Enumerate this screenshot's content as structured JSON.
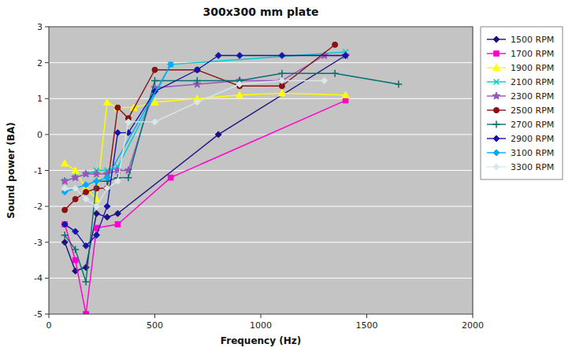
{
  "chart_data": {
    "type": "line",
    "title": "300x300 mm plate",
    "xlabel": "Frequency (Hz)",
    "ylabel": "Sound power (BA)",
    "xlim": [
      0,
      2000
    ],
    "ylim": [
      -5,
      3
    ],
    "xticks": [
      0,
      500,
      1000,
      1500,
      2000
    ],
    "yticks": [
      -5,
      -4,
      -3,
      -2,
      -1,
      0,
      1,
      2,
      3
    ],
    "grid": true,
    "legend": "right",
    "series": [
      {
        "name": "1500 RPM",
        "color": "#1f1080",
        "marker": "diamond",
        "x": [
          75,
          125,
          175,
          225,
          275,
          325,
          800,
          1400
        ],
        "values": [
          -3.0,
          -3.8,
          -3.7,
          -2.2,
          -2.3,
          -2.2,
          0.0,
          2.2
        ]
      },
      {
        "name": "1700 RPM",
        "color": "#ff00cc",
        "marker": "square",
        "x": [
          75,
          125,
          175,
          225,
          325,
          575,
          1400
        ],
        "values": [
          -2.5,
          -3.5,
          -5.0,
          -2.6,
          -2.5,
          -1.2,
          0.95
        ]
      },
      {
        "name": "1900 RPM",
        "color": "#ffff00",
        "marker": "triangle",
        "x": [
          75,
          125,
          175,
          225,
          275,
          325,
          400,
          500,
          700,
          900,
          1100,
          1400
        ],
        "values": [
          -0.8,
          -1.0,
          -1.5,
          -1.8,
          0.9,
          0.75,
          0.75,
          0.9,
          1.0,
          1.1,
          1.15,
          1.1
        ]
      },
      {
        "name": "2100 RPM",
        "color": "#00cccc",
        "marker": "x",
        "x": [
          75,
          125,
          175,
          225,
          275,
          325,
          575,
          1400
        ],
        "values": [
          -1.3,
          -1.2,
          -1.1,
          -1.0,
          -1.0,
          -0.9,
          1.95,
          2.3
        ]
      },
      {
        "name": "2300 RPM",
        "color": "#9955bb",
        "marker": "star",
        "x": [
          75,
          125,
          175,
          225,
          275,
          325,
          375,
          500,
          700,
          900,
          1100,
          1300,
          1400
        ],
        "values": [
          -1.3,
          -1.2,
          -1.1,
          -1.1,
          -1.1,
          -1.0,
          -1.0,
          1.3,
          1.4,
          1.5,
          1.5,
          2.2,
          2.2
        ]
      },
      {
        "name": "2500 RPM",
        "color": "#8b1010",
        "marker": "circle",
        "x": [
          75,
          125,
          175,
          225,
          275,
          325,
          375,
          500,
          700,
          900,
          1100,
          1350
        ],
        "values": [
          -2.1,
          -1.8,
          -1.6,
          -1.5,
          -1.5,
          0.75,
          0.45,
          1.8,
          1.8,
          1.35,
          1.35,
          2.5
        ]
      },
      {
        "name": "2700 RPM",
        "color": "#007070",
        "marker": "plus",
        "x": [
          75,
          125,
          175,
          225,
          275,
          325,
          375,
          500,
          700,
          900,
          1100,
          1350,
          1650
        ],
        "values": [
          -2.8,
          -3.2,
          -4.1,
          -1.3,
          -1.3,
          -1.2,
          -1.2,
          1.5,
          1.5,
          1.5,
          1.7,
          1.7,
          1.4
        ]
      },
      {
        "name": "2900 RPM",
        "color": "#1515aa",
        "marker": "diamond",
        "x": [
          75,
          125,
          175,
          225,
          275,
          325,
          375,
          500,
          700,
          800,
          900,
          1100,
          1400
        ],
        "values": [
          -2.5,
          -2.7,
          -3.1,
          -2.8,
          -2.0,
          0.05,
          0.05,
          1.2,
          1.8,
          2.2,
          2.2,
          2.2,
          2.2
        ]
      },
      {
        "name": "3100 RPM",
        "color": "#00aaff",
        "marker": "diamond",
        "x": [
          75,
          125,
          175,
          225,
          275,
          575
        ],
        "values": [
          -1.6,
          -1.5,
          -1.4,
          -1.3,
          -1.2,
          1.95
        ]
      },
      {
        "name": "3300 RPM",
        "color": "#d8e8e8",
        "marker": "diamond",
        "x": [
          75,
          125,
          175,
          225,
          275,
          325,
          375,
          500,
          700,
          900,
          1100,
          1300
        ],
        "values": [
          -1.5,
          -1.5,
          -1.8,
          -2.0,
          -1.5,
          -1.3,
          0.35,
          0.35,
          0.9,
          1.4,
          1.5,
          1.5
        ]
      }
    ]
  }
}
